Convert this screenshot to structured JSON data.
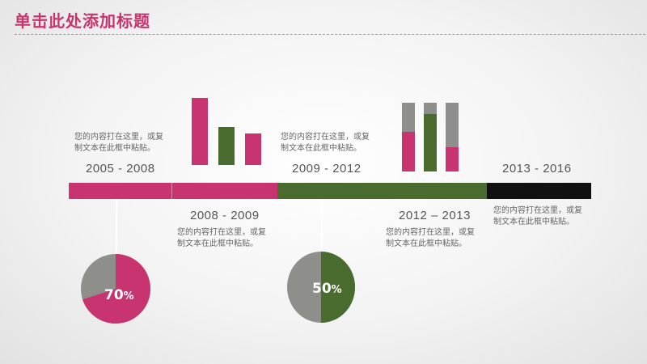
{
  "title": "单击此处添加标题",
  "colors": {
    "pink": "#c8346f",
    "green": "#4a6b2e",
    "gray": "#8e8e8a",
    "black": "#111111"
  },
  "periods": [
    {
      "label": "2005 - 2008",
      "desc1": "您的内容打在这里，或复",
      "desc2": "制文本在此框中粘贴。"
    },
    {
      "label": "2008 - 2009",
      "desc1": "您的内容打在这里，或复",
      "desc2": "制文本在此框中粘贴。"
    },
    {
      "label": "2009 - 2012",
      "desc1": "您的内容打在这里，或复",
      "desc2": "制文本在此框中粘贴。"
    },
    {
      "label": "2012 – 2013",
      "desc1": "您的内容打在这里，或复",
      "desc2": "制文本在此框中粘贴。"
    },
    {
      "label": "2013 - 2016",
      "desc1": "您的内容打在这里，或复",
      "desc2": "制文本在此框中粘贴。"
    }
  ],
  "pies": [
    {
      "value": 70,
      "label_main": "70",
      "label_suffix": "%"
    },
    {
      "value": 50,
      "label_main": "50",
      "label_suffix": "%"
    }
  ]
}
